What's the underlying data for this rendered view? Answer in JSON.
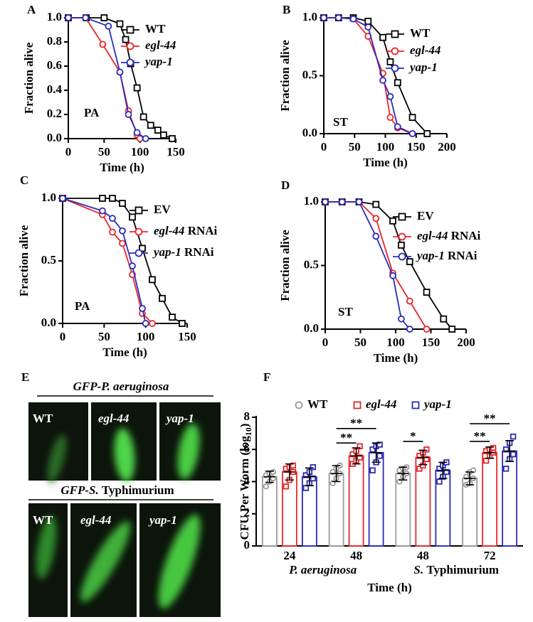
{
  "chart_data": [
    {
      "panel": "A",
      "type": "line",
      "annotation": "PA",
      "x_label": "Time (h)",
      "y_label": "Fraction alive",
      "xlim": [
        0,
        150
      ],
      "xticks": [
        0,
        50,
        100,
        150
      ],
      "ylim": [
        0,
        1
      ],
      "yticks": [
        {
          "value": 0,
          "label": "0.0"
        },
        0.2,
        0.4,
        0.6,
        0.8,
        {
          "value": 1,
          "label": "1.0"
        }
      ],
      "series": [
        {
          "name": "WT",
          "color": "#000000",
          "marker": "square",
          "x": [
            0,
            25,
            50,
            72,
            80,
            87,
            96,
            105,
            115,
            125,
            133,
            145
          ],
          "values": [
            1,
            1,
            1,
            0.95,
            0.82,
            0.62,
            0.42,
            0.18,
            0.11,
            0.07,
            0.03,
            0
          ]
        },
        {
          "name": "egl-44",
          "color": "#e8262b",
          "marker": "circle",
          "x": [
            0,
            24,
            48,
            72,
            84,
            96,
            100
          ],
          "values": [
            1,
            1,
            0.78,
            0.55,
            0.23,
            0.03,
            0
          ]
        },
        {
          "name": "yap-1",
          "color": "#2b2bb8",
          "marker": "circle",
          "x": [
            0,
            24,
            56,
            72,
            84,
            96,
            108
          ],
          "values": [
            1,
            1,
            0.93,
            0.55,
            0.2,
            0.05,
            0
          ]
        }
      ]
    },
    {
      "panel": "B",
      "type": "line",
      "annotation": "ST",
      "x_label": "Time (h)",
      "y_label": "Fraction alive",
      "xlim": [
        0,
        200
      ],
      "xticks": [
        0,
        50,
        100,
        150,
        200
      ],
      "ylim": [
        0,
        1
      ],
      "yticks": [
        {
          "value": 0,
          "label": "0.0"
        },
        0.5,
        {
          "value": 1,
          "label": "1.0"
        }
      ],
      "series": [
        {
          "name": "WT",
          "color": "#000000",
          "marker": "square",
          "x": [
            0,
            24,
            48,
            72,
            96,
            108,
            120,
            144,
            168
          ],
          "values": [
            1,
            1,
            1,
            0.97,
            0.83,
            0.62,
            0.44,
            0.14,
            0
          ]
        },
        {
          "name": "egl-44",
          "color": "#e8262b",
          "marker": "circle",
          "x": [
            0,
            24,
            48,
            72,
            96,
            108,
            120,
            144
          ],
          "values": [
            1,
            1,
            0.99,
            0.84,
            0.52,
            0.14,
            0.05,
            0
          ]
        },
        {
          "name": "yap-1",
          "color": "#2b2bb8",
          "marker": "circle",
          "x": [
            0,
            24,
            48,
            72,
            96,
            108,
            120,
            144
          ],
          "values": [
            1,
            1,
            0.99,
            0.92,
            0.46,
            0.32,
            0.06,
            0
          ]
        }
      ]
    },
    {
      "panel": "C",
      "type": "line",
      "annotation": "PA",
      "x_label": "Time (h)",
      "y_label": "Fraction alive",
      "xlim": [
        0,
        150
      ],
      "xticks": [
        0,
        50,
        100,
        150
      ],
      "ylim": [
        0,
        1
      ],
      "yticks": [
        {
          "value": 0,
          "label": "0.0"
        },
        0.5,
        {
          "value": 1,
          "label": "1.0"
        }
      ],
      "series": [
        {
          "name": "EV",
          "color": "#000000",
          "marker": "square",
          "x": [
            0,
            48,
            60,
            72,
            84,
            96,
            108,
            120,
            132,
            144
          ],
          "values": [
            1,
            1,
            1,
            0.96,
            0.85,
            0.6,
            0.35,
            0.2,
            0.05,
            0
          ]
        },
        {
          "name": "egl-44 RNAi",
          "color": "#e8262b",
          "marker": "circle",
          "x": [
            0,
            48,
            60,
            72,
            84,
            96,
            108
          ],
          "values": [
            1,
            0.87,
            0.73,
            0.64,
            0.39,
            0.08,
            0
          ]
        },
        {
          "name": "yap-1 RNAi",
          "color": "#2b2bb8",
          "marker": "circle",
          "x": [
            0,
            48,
            60,
            72,
            84,
            96,
            100
          ],
          "values": [
            1,
            0.9,
            0.84,
            0.74,
            0.46,
            0.12,
            0
          ]
        }
      ]
    },
    {
      "panel": "D",
      "type": "line",
      "annotation": "ST",
      "x_label": "Time (h)",
      "y_label": "Fraction alive",
      "xlim": [
        0,
        200
      ],
      "xticks": [
        0,
        50,
        100,
        150,
        200
      ],
      "ylim": [
        0,
        1
      ],
      "yticks": [
        {
          "value": 0,
          "label": "0.0"
        },
        0.5,
        {
          "value": 1,
          "label": "1.0"
        }
      ],
      "series": [
        {
          "name": "EV",
          "color": "#000000",
          "marker": "square",
          "x": [
            0,
            24,
            48,
            72,
            96,
            108,
            120,
            144,
            168,
            180
          ],
          "values": [
            1,
            1,
            1,
            0.98,
            0.85,
            0.66,
            0.53,
            0.29,
            0.08,
            0
          ]
        },
        {
          "name": "egl-44 RNAi",
          "color": "#e8262b",
          "marker": "circle",
          "x": [
            0,
            24,
            48,
            72,
            96,
            120,
            144
          ],
          "values": [
            1,
            1,
            1,
            0.87,
            0.44,
            0.22,
            0
          ]
        },
        {
          "name": "yap-1 RNAi",
          "color": "#2b2bb8",
          "marker": "circle",
          "x": [
            0,
            24,
            48,
            72,
            96,
            108,
            120
          ],
          "values": [
            1,
            1,
            1,
            0.73,
            0.42,
            0.08,
            0
          ]
        }
      ]
    },
    {
      "panel": "F",
      "type": "bar",
      "x_label": "Time (h)",
      "y_label": [
        "CFU Per Worm (log",
        "10",
        ")"
      ],
      "categories": [
        "24",
        "48",
        "48",
        "72"
      ],
      "category_groups": [
        "P. aeruginosa",
        "S. Typhimurium"
      ],
      "ylim": [
        0,
        8
      ],
      "yticks": [
        0,
        2,
        4,
        6,
        8
      ],
      "series": [
        {
          "name": "WT",
          "color": "#9b9b9b",
          "marker": "circle",
          "values": [
            4.3,
            4.5,
            4.5,
            4.2
          ],
          "errors": [
            0.35,
            0.5,
            0.4,
            0.4
          ],
          "points": [
            [
              3.7,
              4.0,
              4.2,
              4.4,
              4.5,
              4.6
            ],
            [
              3.9,
              4.2,
              4.5,
              4.6,
              4.8,
              5.0
            ],
            [
              4.0,
              4.3,
              4.5,
              4.7,
              4.8,
              4.9
            ],
            [
              3.8,
              3.9,
              4.2,
              4.3,
              4.6,
              4.7
            ]
          ]
        },
        {
          "name": "egl-44",
          "color": "#e8262b",
          "marker": "square",
          "values": [
            4.6,
            5.6,
            5.5,
            5.8
          ],
          "errors": [
            0.5,
            0.5,
            0.45,
            0.35
          ],
          "points": [
            [
              3.7,
              4.1,
              4.6,
              4.8,
              4.9,
              5.0
            ],
            [
              5.1,
              5.3,
              5.5,
              5.7,
              5.9,
              6.2
            ],
            [
              4.8,
              5.0,
              5.4,
              5.6,
              5.8,
              6.0
            ],
            [
              5.3,
              5.6,
              5.8,
              5.9,
              6.0,
              6.1
            ]
          ]
        },
        {
          "name": "yap-1",
          "color": "#2b2bb8",
          "marker": "square",
          "values": [
            4.3,
            5.8,
            4.7,
            5.9
          ],
          "errors": [
            0.55,
            0.6,
            0.5,
            0.65
          ],
          "points": [
            [
              3.6,
              3.9,
              4.2,
              4.4,
              4.6,
              4.9
            ],
            [
              4.7,
              5.2,
              5.6,
              6.0,
              6.2,
              6.3
            ],
            [
              4.0,
              4.3,
              4.6,
              4.8,
              5.0,
              5.2
            ],
            [
              4.8,
              5.4,
              5.7,
              6.0,
              6.4,
              6.8
            ]
          ]
        }
      ],
      "annotations": [
        {
          "text": "**",
          "category": 1,
          "from": 0,
          "to": 1,
          "y": 6.4
        },
        {
          "text": "**",
          "category": 1,
          "from": 0,
          "to": 2,
          "y": 7.3
        },
        {
          "text": "*",
          "category": 2,
          "from": 0,
          "to": 1,
          "y": 6.5
        },
        {
          "text": "**",
          "category": 3,
          "from": 0,
          "to": 1,
          "y": 6.5
        },
        {
          "text": "**",
          "category": 3,
          "from": 0,
          "to": 2,
          "y": 7.6
        }
      ]
    }
  ],
  "images": {
    "panel": "E",
    "rows": [
      {
        "title": "GFP-P. aeruginosa",
        "labels": [
          "WT",
          "egl-44",
          "yap-1"
        ]
      },
      {
        "title": "GFP-S. Typhimurium",
        "labels": [
          "WT",
          "egl-44",
          "yap-1"
        ]
      }
    ]
  }
}
